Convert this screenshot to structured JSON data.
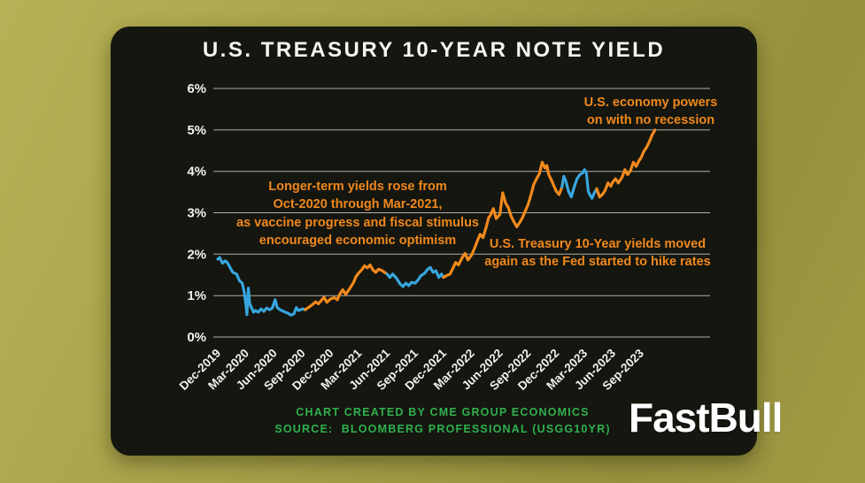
{
  "theme": {
    "page_bg": "#a7a149",
    "card_bg": "#14160f",
    "title_white": "#f5f5f0",
    "annotation_orange": "#f0881c",
    "footer_green": "#2fb14d",
    "logo_white": "#ffffff",
    "gridline": "#d8d8d0",
    "line_blue": "#38a6de",
    "line_orange": "#f2891c"
  },
  "logo": {
    "text": "FastBull"
  },
  "footer": {
    "credit": "CHART CREATED BY CME GROUP ECONOMICS",
    "source": "SOURCE:  BLOOMBERG PROFESSIONAL (USGG10YR)"
  },
  "chart_data": {
    "type": "line",
    "title": "U.S. TREASURY 10-YEAR NOTE YIELD",
    "xlabel": "",
    "ylabel": "",
    "ylim": [
      0,
      6
    ],
    "grid": "horizontal",
    "legend": "none",
    "series_name": "U.S. Treasury 10-Year Note Yield (%)",
    "x_unit": "months since Dec-2019",
    "ytick_values": [
      0,
      1,
      2,
      3,
      4,
      5,
      6
    ],
    "ytick_labels": [
      "0%",
      "1%",
      "2%",
      "3%",
      "4%",
      "5%",
      "6%"
    ],
    "xticks": [
      {
        "t": 0,
        "label": "Dec-2019"
      },
      {
        "t": 3,
        "label": "Mar-2020"
      },
      {
        "t": 6,
        "label": "Jun-2020"
      },
      {
        "t": 9,
        "label": "Sep-2020"
      },
      {
        "t": 12,
        "label": "Dec-2020"
      },
      {
        "t": 15,
        "label": "Mar-2021"
      },
      {
        "t": 18,
        "label": "Jun-2021"
      },
      {
        "t": 21,
        "label": "Sep-2021"
      },
      {
        "t": 24,
        "label": "Dec-2021"
      },
      {
        "t": 27,
        "label": "Mar-2022"
      },
      {
        "t": 30,
        "label": "Jun-2022"
      },
      {
        "t": 33,
        "label": "Sep-2022"
      },
      {
        "t": 36,
        "label": "Dec-2022"
      },
      {
        "t": 39,
        "label": "Mar-2023"
      },
      {
        "t": 42,
        "label": "Jun-2023"
      },
      {
        "t": 45,
        "label": "Sep-2023"
      }
    ],
    "line_colors": {
      "blue": "#38a6de",
      "orange": "#f2891c"
    },
    "color_segments": [
      {
        "from": 0,
        "to": 9.2,
        "color_key": "blue"
      },
      {
        "from": 9.2,
        "to": 18.15,
        "color_key": "orange"
      },
      {
        "from": 18.15,
        "to": 24.1,
        "color_key": "blue"
      },
      {
        "from": 24.1,
        "to": 36.7,
        "color_key": "orange"
      },
      {
        "from": 36.7,
        "to": 40.2,
        "color_key": "blue"
      },
      {
        "from": 40.2,
        "to": 46.6,
        "color_key": "orange"
      }
    ],
    "points": [
      [
        0,
        1.88
      ],
      [
        0.2,
        1.92
      ],
      [
        0.5,
        1.78
      ],
      [
        0.8,
        1.84
      ],
      [
        1,
        1.8
      ],
      [
        1.3,
        1.68
      ],
      [
        1.6,
        1.56
      ],
      [
        2,
        1.52
      ],
      [
        2.3,
        1.36
      ],
      [
        2.6,
        1.3
      ],
      [
        2.8,
        1.1
      ],
      [
        3,
        0.76
      ],
      [
        3.1,
        0.54
      ],
      [
        3.25,
        1.18
      ],
      [
        3.4,
        0.8
      ],
      [
        3.6,
        0.7
      ],
      [
        3.8,
        0.6
      ],
      [
        4,
        0.64
      ],
      [
        4.3,
        0.6
      ],
      [
        4.6,
        0.68
      ],
      [
        4.9,
        0.62
      ],
      [
        5.2,
        0.7
      ],
      [
        5.5,
        0.66
      ],
      [
        5.8,
        0.7
      ],
      [
        6.1,
        0.9
      ],
      [
        6.3,
        0.72
      ],
      [
        6.6,
        0.66
      ],
      [
        7,
        0.62
      ],
      [
        7.4,
        0.58
      ],
      [
        7.8,
        0.53
      ],
      [
        8.1,
        0.56
      ],
      [
        8.35,
        0.71
      ],
      [
        8.6,
        0.64
      ],
      [
        9,
        0.68
      ],
      [
        9.3,
        0.66
      ],
      [
        9.6,
        0.71
      ],
      [
        10,
        0.77
      ],
      [
        10.4,
        0.85
      ],
      [
        10.7,
        0.8
      ],
      [
        11,
        0.88
      ],
      [
        11.3,
        0.96
      ],
      [
        11.6,
        0.84
      ],
      [
        12,
        0.92
      ],
      [
        12.4,
        0.95
      ],
      [
        12.7,
        0.9
      ],
      [
        13,
        1.05
      ],
      [
        13.3,
        1.14
      ],
      [
        13.6,
        1.03
      ],
      [
        14,
        1.16
      ],
      [
        14.4,
        1.3
      ],
      [
        14.7,
        1.46
      ],
      [
        15,
        1.55
      ],
      [
        15.3,
        1.62
      ],
      [
        15.6,
        1.72
      ],
      [
        15.9,
        1.67
      ],
      [
        16.2,
        1.74
      ],
      [
        16.5,
        1.62
      ],
      [
        16.8,
        1.56
      ],
      [
        17.1,
        1.64
      ],
      [
        17.5,
        1.6
      ],
      [
        17.8,
        1.55
      ],
      [
        18,
        1.52
      ],
      [
        18.3,
        1.44
      ],
      [
        18.6,
        1.52
      ],
      [
        19,
        1.42
      ],
      [
        19.4,
        1.28
      ],
      [
        19.7,
        1.22
      ],
      [
        20,
        1.3
      ],
      [
        20.3,
        1.24
      ],
      [
        20.6,
        1.32
      ],
      [
        21,
        1.3
      ],
      [
        21.3,
        1.38
      ],
      [
        21.6,
        1.48
      ],
      [
        22,
        1.54
      ],
      [
        22.3,
        1.63
      ],
      [
        22.6,
        1.68
      ],
      [
        22.9,
        1.56
      ],
      [
        23.2,
        1.6
      ],
      [
        23.5,
        1.44
      ],
      [
        23.8,
        1.52
      ],
      [
        24,
        1.44
      ],
      [
        24.3,
        1.48
      ],
      [
        24.7,
        1.52
      ],
      [
        25,
        1.66
      ],
      [
        25.3,
        1.8
      ],
      [
        25.6,
        1.74
      ],
      [
        26,
        1.92
      ],
      [
        26.3,
        2.02
      ],
      [
        26.6,
        1.86
      ],
      [
        27,
        1.98
      ],
      [
        27.3,
        2.14
      ],
      [
        27.6,
        2.32
      ],
      [
        27.9,
        2.48
      ],
      [
        28.2,
        2.4
      ],
      [
        28.5,
        2.62
      ],
      [
        28.8,
        2.88
      ],
      [
        29,
        2.94
      ],
      [
        29.3,
        3.1
      ],
      [
        29.6,
        2.86
      ],
      [
        30,
        2.96
      ],
      [
        30.3,
        3.48
      ],
      [
        30.6,
        3.24
      ],
      [
        30.9,
        3.12
      ],
      [
        31.2,
        2.92
      ],
      [
        31.5,
        2.78
      ],
      [
        31.8,
        2.66
      ],
      [
        32.1,
        2.76
      ],
      [
        32.4,
        2.88
      ],
      [
        32.7,
        3.04
      ],
      [
        33,
        3.2
      ],
      [
        33.3,
        3.42
      ],
      [
        33.6,
        3.68
      ],
      [
        33.9,
        3.82
      ],
      [
        34.2,
        3.94
      ],
      [
        34.5,
        4.22
      ],
      [
        34.8,
        4.08
      ],
      [
        35,
        4.14
      ],
      [
        35.2,
        3.92
      ],
      [
        35.5,
        3.78
      ],
      [
        35.8,
        3.62
      ],
      [
        36,
        3.52
      ],
      [
        36.3,
        3.44
      ],
      [
        36.6,
        3.62
      ],
      [
        36.8,
        3.88
      ],
      [
        37,
        3.78
      ],
      [
        37.3,
        3.52
      ],
      [
        37.6,
        3.38
      ],
      [
        37.9,
        3.62
      ],
      [
        38.2,
        3.82
      ],
      [
        38.5,
        3.92
      ],
      [
        38.8,
        3.96
      ],
      [
        39,
        4.04
      ],
      [
        39.2,
        3.96
      ],
      [
        39.4,
        3.52
      ],
      [
        39.6,
        3.42
      ],
      [
        39.8,
        3.35
      ],
      [
        40,
        3.46
      ],
      [
        40.3,
        3.58
      ],
      [
        40.6,
        3.38
      ],
      [
        40.9,
        3.44
      ],
      [
        41.2,
        3.54
      ],
      [
        41.5,
        3.72
      ],
      [
        41.8,
        3.64
      ],
      [
        42,
        3.74
      ],
      [
        42.3,
        3.82
      ],
      [
        42.6,
        3.72
      ],
      [
        43,
        3.86
      ],
      [
        43.3,
        4.04
      ],
      [
        43.6,
        3.92
      ],
      [
        43.9,
        4.02
      ],
      [
        44.2,
        4.22
      ],
      [
        44.5,
        4.12
      ],
      [
        44.8,
        4.26
      ],
      [
        45,
        4.32
      ],
      [
        45.3,
        4.48
      ],
      [
        45.6,
        4.58
      ],
      [
        45.9,
        4.72
      ],
      [
        46.2,
        4.88
      ],
      [
        46.5,
        5.0
      ]
    ],
    "annotations": {
      "vaccine": {
        "lines": [
          "Longer-term yields rose from",
          "Oct-2020 through Mar-2021,",
          "as vaccine progress and fiscal stimulus",
          "encouraged economic optimism"
        ]
      },
      "hike": {
        "lines": [
          "U.S. Treasury 10-Year yields moved",
          "again as the Fed started to hike rates"
        ]
      },
      "economy": {
        "lines": [
          "U.S. economy powers",
          "on with no recession"
        ]
      }
    }
  }
}
